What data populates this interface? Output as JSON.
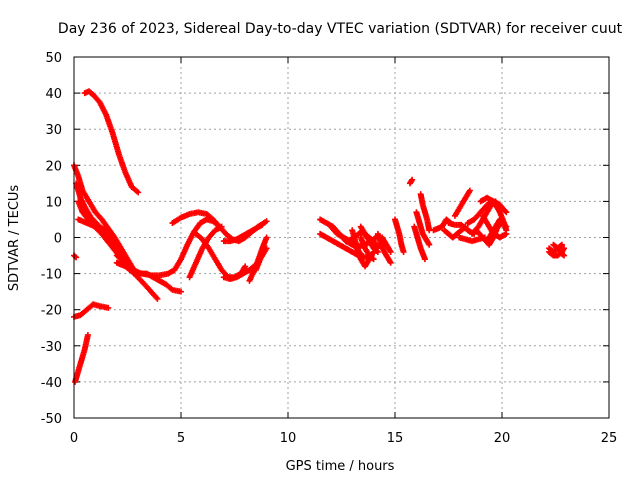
{
  "chart_data": {
    "type": "scatter",
    "title": "Day 236 of 2023, Sidereal Day-to-day VTEC variation (SDTVAR) for receiver cuut",
    "xlabel": "GPS time / hours",
    "ylabel": "SDTVAR / TECUs",
    "xlim": [
      0,
      25
    ],
    "ylim": [
      -50,
      50
    ],
    "xticks": [
      0,
      5,
      10,
      15,
      20,
      25
    ],
    "yticks": [
      -50,
      -40,
      -30,
      -20,
      -10,
      0,
      10,
      20,
      30,
      40,
      50
    ],
    "grid": true,
    "marker": "+",
    "color": "#ff0000",
    "tracks": [
      [
        [
          0.05,
          -40
        ],
        [
          0.2,
          -37
        ],
        [
          0.35,
          -34
        ],
        [
          0.5,
          -31
        ],
        [
          0.65,
          -27
        ]
      ],
      [
        [
          0.0,
          -22
        ],
        [
          0.3,
          -21.5
        ],
        [
          0.6,
          -20
        ],
        [
          0.9,
          -18.5
        ],
        [
          1.2,
          -19
        ],
        [
          1.6,
          -19.5
        ]
      ],
      [
        [
          0.0,
          -5
        ],
        [
          0.1,
          -5.5
        ]
      ],
      [
        [
          0.5,
          40
        ],
        [
          0.7,
          40.5
        ],
        [
          0.9,
          39.5
        ],
        [
          1.2,
          37.5
        ],
        [
          1.5,
          34
        ],
        [
          1.8,
          29
        ],
        [
          2.1,
          23
        ],
        [
          2.4,
          18
        ],
        [
          2.7,
          14
        ],
        [
          3.0,
          12.5
        ]
      ],
      [
        [
          0.0,
          20
        ],
        [
          0.2,
          17
        ],
        [
          0.4,
          13
        ],
        [
          0.7,
          10
        ],
        [
          1.0,
          7
        ],
        [
          1.3,
          5
        ],
        [
          1.6,
          2.5
        ],
        [
          1.9,
          0
        ],
        [
          2.2,
          -3
        ],
        [
          2.5,
          -6
        ],
        [
          2.8,
          -9
        ],
        [
          3.1,
          -10
        ],
        [
          3.4,
          -10
        ],
        [
          3.7,
          -11
        ],
        [
          4.0,
          -12
        ],
        [
          4.3,
          -13
        ],
        [
          4.6,
          -14.5
        ],
        [
          5.0,
          -15
        ]
      ],
      [
        [
          0.1,
          15
        ],
        [
          0.3,
          11
        ],
        [
          0.5,
          8.5
        ],
        [
          0.8,
          5.5
        ],
        [
          1.2,
          3
        ],
        [
          1.6,
          1.5
        ],
        [
          1.9,
          -1
        ],
        [
          2.2,
          -4
        ],
        [
          2.5,
          -7
        ],
        [
          2.9,
          -10.5
        ],
        [
          3.3,
          -13
        ],
        [
          3.6,
          -15
        ],
        [
          3.9,
          -17
        ]
      ],
      [
        [
          0.2,
          10
        ],
        [
          0.4,
          7
        ],
        [
          0.8,
          4
        ],
        [
          1.3,
          1
        ],
        [
          1.7,
          -2
        ],
        [
          2.1,
          -5
        ],
        [
          2.5,
          -8
        ],
        [
          2.8,
          -10
        ]
      ],
      [
        [
          0.2,
          5
        ],
        [
          0.6,
          4
        ],
        [
          1.0,
          3
        ],
        [
          1.4,
          1
        ],
        [
          1.7,
          -1
        ],
        [
          2.0,
          -4
        ],
        [
          2.3,
          -7
        ],
        [
          2.6,
          -9
        ]
      ],
      [
        [
          2.0,
          -7
        ],
        [
          2.4,
          -8
        ],
        [
          2.8,
          -9.5
        ],
        [
          3.2,
          -10
        ],
        [
          3.6,
          -10.5
        ],
        [
          4.0,
          -10.5
        ],
        [
          4.4,
          -10
        ],
        [
          4.7,
          -9
        ],
        [
          5.0,
          -6
        ],
        [
          5.3,
          -2
        ],
        [
          5.6,
          1.5
        ],
        [
          5.9,
          4
        ],
        [
          6.2,
          5
        ],
        [
          6.5,
          4.5
        ],
        [
          6.8,
          3
        ]
      ],
      [
        [
          2.0,
          -5
        ],
        [
          2.3,
          -6.5
        ],
        [
          2.6,
          -8.5
        ],
        [
          2.9,
          -10
        ]
      ],
      [
        [
          4.6,
          4
        ],
        [
          5.0,
          5.5
        ],
        [
          5.4,
          6.5
        ],
        [
          5.8,
          7
        ],
        [
          6.2,
          6.5
        ],
        [
          6.5,
          5
        ],
        [
          6.8,
          3
        ],
        [
          7.1,
          1
        ],
        [
          7.4,
          -0.5
        ],
        [
          7.7,
          -1
        ],
        [
          8.0,
          0
        ],
        [
          8.3,
          1.5
        ],
        [
          8.6,
          3
        ],
        [
          9.0,
          4.5
        ]
      ],
      [
        [
          5.4,
          -11
        ],
        [
          5.7,
          -7
        ],
        [
          6.0,
          -3
        ],
        [
          6.3,
          0
        ],
        [
          6.6,
          2
        ],
        [
          6.9,
          3
        ]
      ],
      [
        [
          5.7,
          1
        ],
        [
          6.0,
          -0.5
        ],
        [
          6.3,
          -3
        ],
        [
          6.6,
          -6
        ],
        [
          6.9,
          -9
        ],
        [
          7.2,
          -11
        ],
        [
          7.5,
          -11
        ],
        [
          7.8,
          -10
        ],
        [
          8.0,
          -8
        ]
      ],
      [
        [
          7.0,
          -11
        ],
        [
          7.3,
          -11.5
        ],
        [
          7.6,
          -11
        ],
        [
          7.9,
          -10
        ],
        [
          8.2,
          -9
        ],
        [
          8.5,
          -7.5
        ]
      ],
      [
        [
          7.0,
          -1
        ],
        [
          7.3,
          -1
        ],
        [
          7.6,
          -0.5
        ],
        [
          7.9,
          0.5
        ],
        [
          8.2,
          1.5
        ],
        [
          8.5,
          2.5
        ],
        [
          8.8,
          3.5
        ]
      ],
      [
        [
          8.2,
          -12
        ],
        [
          8.5,
          -8
        ],
        [
          8.8,
          -3
        ],
        [
          9.0,
          0
        ]
      ],
      [
        [
          8.5,
          -9
        ],
        [
          8.7,
          -6
        ],
        [
          9.0,
          -3
        ]
      ],
      [
        [
          11.5,
          5
        ],
        [
          11.8,
          4
        ],
        [
          12.1,
          3
        ],
        [
          12.4,
          1
        ],
        [
          12.7,
          -1
        ],
        [
          13.0,
          -2
        ],
        [
          13.3,
          -2.5
        ],
        [
          13.6,
          -2
        ],
        [
          13.9,
          -1
        ],
        [
          14.1,
          0
        ]
      ],
      [
        [
          11.5,
          1
        ],
        [
          11.8,
          0
        ],
        [
          12.1,
          -1
        ],
        [
          12.4,
          -2
        ],
        [
          12.7,
          -3
        ],
        [
          13.0,
          -4
        ],
        [
          13.3,
          -5
        ],
        [
          13.6,
          -5.5
        ],
        [
          13.9,
          -5
        ]
      ],
      [
        [
          12.0,
          3
        ],
        [
          12.3,
          1
        ],
        [
          12.6,
          0
        ],
        [
          12.9,
          -1
        ],
        [
          13.2,
          -3
        ],
        [
          13.4,
          -4.5
        ]
      ],
      [
        [
          12.8,
          -1
        ],
        [
          13.1,
          0
        ],
        [
          13.4,
          1.5
        ],
        [
          13.7,
          0.5
        ],
        [
          14.0,
          -1
        ],
        [
          14.2,
          -3
        ]
      ],
      [
        [
          13.0,
          2
        ],
        [
          13.2,
          -2
        ],
        [
          13.4,
          -6
        ],
        [
          13.6,
          -8
        ],
        [
          13.8,
          -6
        ],
        [
          14.0,
          -4
        ]
      ],
      [
        [
          13.4,
          0
        ],
        [
          13.6,
          -3
        ],
        [
          13.8,
          -5
        ],
        [
          14.0,
          -6
        ]
      ],
      [
        [
          13.4,
          3
        ],
        [
          13.6,
          1
        ],
        [
          13.8,
          -1
        ],
        [
          14.0,
          -3
        ],
        [
          14.2,
          -4
        ]
      ],
      [
        [
          14.2,
          1
        ],
        [
          14.35,
          -2
        ],
        [
          14.5,
          -4
        ],
        [
          14.65,
          -5.5
        ],
        [
          14.8,
          -7
        ]
      ],
      [
        [
          14.4,
          0
        ],
        [
          14.6,
          -2
        ],
        [
          14.8,
          -4
        ]
      ],
      [
        [
          15.0,
          5
        ],
        [
          15.1,
          3
        ],
        [
          15.2,
          1
        ],
        [
          15.3,
          -2
        ],
        [
          15.4,
          -4
        ]
      ],
      [
        [
          15.7,
          15
        ],
        [
          15.8,
          16
        ]
      ],
      [
        [
          15.9,
          3
        ],
        [
          16.0,
          1
        ],
        [
          16.1,
          -1
        ],
        [
          16.2,
          -3
        ],
        [
          16.3,
          -4.5
        ],
        [
          16.4,
          -6
        ]
      ],
      [
        [
          16.0,
          7
        ],
        [
          16.1,
          5
        ],
        [
          16.2,
          3
        ],
        [
          16.3,
          1
        ],
        [
          16.4,
          0
        ],
        [
          16.5,
          -1
        ],
        [
          16.6,
          -2
        ]
      ],
      [
        [
          16.2,
          12
        ],
        [
          16.3,
          9
        ],
        [
          16.4,
          7
        ],
        [
          16.5,
          5
        ],
        [
          16.6,
          2
        ]
      ],
      [
        [
          16.8,
          2
        ],
        [
          17.0,
          2.5
        ],
        [
          17.2,
          3
        ],
        [
          17.4,
          5
        ],
        [
          17.6,
          4
        ]
      ],
      [
        [
          17.3,
          2
        ],
        [
          17.5,
          1
        ],
        [
          17.7,
          0
        ],
        [
          17.9,
          1
        ],
        [
          18.1,
          2
        ],
        [
          18.3,
          3
        ]
      ],
      [
        [
          17.5,
          4
        ],
        [
          17.8,
          3.5
        ],
        [
          18.1,
          3.5
        ],
        [
          18.4,
          2
        ],
        [
          18.7,
          1
        ]
      ],
      [
        [
          17.8,
          6
        ],
        [
          18.1,
          9
        ],
        [
          18.3,
          11
        ],
        [
          18.5,
          13
        ]
      ],
      [
        [
          18.0,
          0
        ],
        [
          18.3,
          -0.5
        ],
        [
          18.6,
          -1
        ],
        [
          18.9,
          -0.5
        ],
        [
          19.2,
          0
        ]
      ],
      [
        [
          18.4,
          4
        ],
        [
          18.7,
          5
        ],
        [
          19.0,
          7
        ],
        [
          19.3,
          9
        ],
        [
          19.6,
          10
        ],
        [
          19.9,
          9
        ],
        [
          20.2,
          7
        ]
      ],
      [
        [
          18.6,
          1
        ],
        [
          18.9,
          3
        ],
        [
          19.2,
          6
        ],
        [
          19.5,
          9
        ],
        [
          19.7,
          10
        ],
        [
          19.9,
          8
        ]
      ],
      [
        [
          18.8,
          2
        ],
        [
          19.1,
          0
        ],
        [
          19.4,
          -2
        ],
        [
          19.6,
          0
        ],
        [
          19.8,
          3
        ],
        [
          20.0,
          4
        ]
      ],
      [
        [
          19.0,
          10
        ],
        [
          19.3,
          11
        ],
        [
          19.6,
          10
        ],
        [
          19.9,
          7
        ],
        [
          20.1,
          4
        ],
        [
          20.2,
          2
        ]
      ],
      [
        [
          19.3,
          -1
        ],
        [
          19.5,
          1
        ],
        [
          19.7,
          3
        ],
        [
          19.9,
          5
        ],
        [
          20.2,
          3
        ]
      ],
      [
        [
          19.1,
          6
        ],
        [
          19.3,
          4
        ],
        [
          19.6,
          1
        ],
        [
          19.9,
          0
        ],
        [
          20.2,
          1
        ]
      ],
      [
        [
          22.2,
          -4
        ],
        [
          22.4,
          -5
        ],
        [
          22.6,
          -5
        ],
        [
          22.8,
          -4
        ],
        [
          22.9,
          -3
        ]
      ],
      [
        [
          22.2,
          -3
        ],
        [
          22.4,
          -4
        ],
        [
          22.6,
          -3
        ],
        [
          22.8,
          -2
        ]
      ],
      [
        [
          22.4,
          -2
        ],
        [
          22.6,
          -3
        ],
        [
          22.8,
          -4.5
        ],
        [
          22.9,
          -5
        ]
      ]
    ]
  }
}
